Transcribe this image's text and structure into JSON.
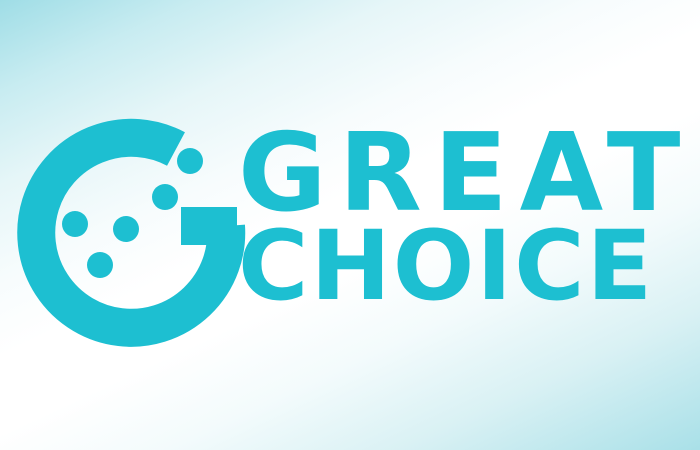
{
  "logo": {
    "mark": "g-dots-icon",
    "line1": "GREAT",
    "line2": "CHOICE"
  },
  "colors": {
    "brand": "#1dbfd1",
    "background_edge": "#9fdde6",
    "background_center": "#ffffff"
  }
}
